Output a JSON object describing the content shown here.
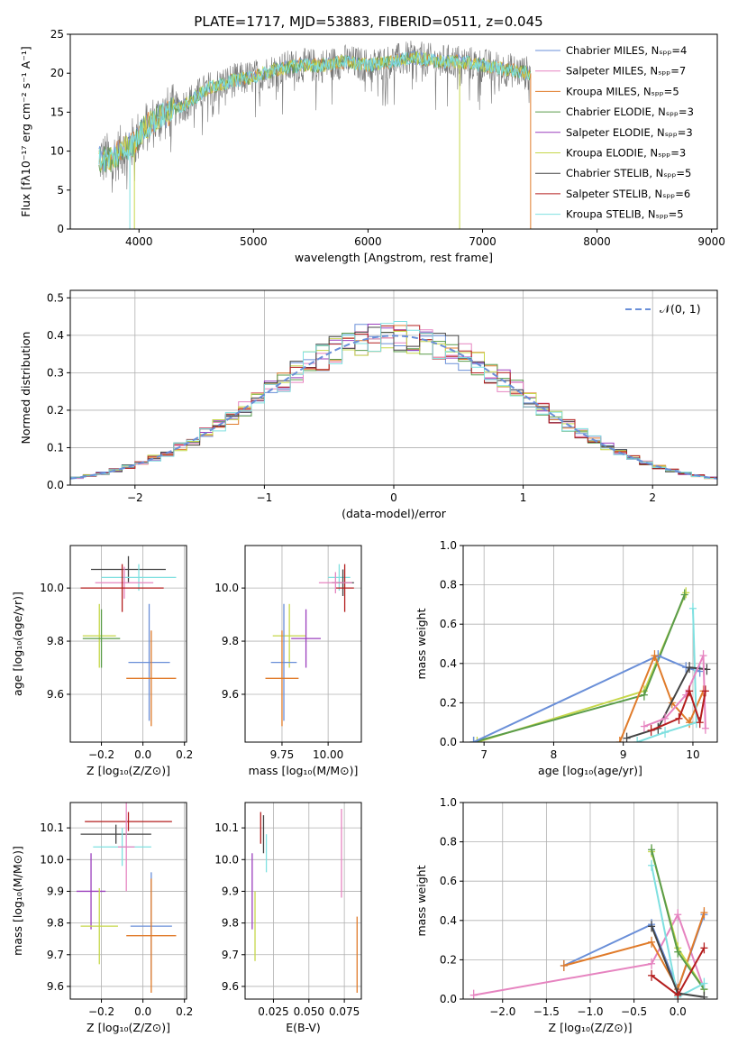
{
  "colors": [
    "#6a8fd8",
    "#e07b2a",
    "#5a9c4a",
    "#9b3fbd",
    "#7a7a7a",
    "#e684c0",
    "#b0b0b0",
    "#c6d74a",
    "#7fe0e0",
    "#444444",
    "#b41e1e"
  ],
  "chart_data": [
    {
      "id": "spectrum",
      "type": "line",
      "title": "PLATE=1717, MJD=53883, FIBERID=0511, z=0.045",
      "xlabel": "wavelength [Angstrom, rest frame]",
      "ylabel": "Flux [fλ10⁻¹⁷ erg cm⁻² s⁻¹ A⁻¹]",
      "xlim": [
        3400,
        9050
      ],
      "ylim": [
        0,
        25
      ],
      "xticks": [
        4000,
        5000,
        6000,
        7000,
        8000,
        9000
      ],
      "yticks": [
        0,
        5,
        10,
        15,
        20,
        25
      ],
      "legend_position": "upper-right",
      "legend": [
        {
          "label": "Chabrier MILES, Nₛₚₚ=4",
          "color": "#6a8fd8"
        },
        {
          "label": "Salpeter MILES, Nₛₚₚ=7",
          "color": "#e684c0"
        },
        {
          "label": "Kroupa MILES, Nₛₚₚ=5",
          "color": "#e07b2a"
        },
        {
          "label": "Chabrier ELODIE, Nₛₚₚ=3",
          "color": "#5a9c4a"
        },
        {
          "label": "Salpeter ELODIE, Nₛₚₚ=3",
          "color": "#9b3fbd"
        },
        {
          "label": "Kroupa ELODIE, Nₛₚₚ=3",
          "color": "#c6d74a"
        },
        {
          "label": "Chabrier STELIB, Nₛₚₚ=5",
          "color": "#444444"
        },
        {
          "label": "Salpeter STELIB, Nₛₚₚ=6",
          "color": "#b41e1e"
        },
        {
          "label": "Kroupa STELIB, Nₛₚₚ=5",
          "color": "#7fe0e0"
        }
      ],
      "continuum": {
        "x": [
          3650,
          3750,
          3850,
          3950,
          4050,
          4200,
          4400,
          4600,
          4800,
          5000,
          5200,
          5400,
          5600,
          5800,
          6000,
          6200,
          6400,
          6600,
          6800,
          7000,
          7200,
          7400
        ],
        "y": [
          9,
          9,
          10,
          11,
          13,
          14.5,
          16,
          18,
          19,
          19.5,
          20.5,
          21,
          21,
          21.5,
          21,
          21.5,
          22,
          21.5,
          21.5,
          21,
          20.5,
          20
        ]
      },
      "drops": [
        {
          "x": 3920,
          "color": "#7fe0e0"
        },
        {
          "x": 3960,
          "color": "#c6d74a"
        },
        {
          "x": 6800,
          "color": "#c6d74a"
        },
        {
          "x": 7420,
          "color": "#e07b2a"
        }
      ]
    },
    {
      "id": "residuals",
      "type": "step",
      "xlabel": "(data-model)/error",
      "ylabel": "Normed distribution",
      "xlim": [
        -2.5,
        2.5
      ],
      "ylim": [
        0,
        0.52
      ],
      "xticks": [
        -2,
        -1,
        0,
        1,
        2
      ],
      "yticks": [
        0.0,
        0.1,
        0.2,
        0.3,
        0.4,
        0.5
      ],
      "legend": "𝒩(0, 1)",
      "legend_position": "upper-right",
      "bin_width": 0.2,
      "grid": true
    },
    {
      "id": "age_vs_z",
      "type": "errorbar",
      "xlabel": "Z [log₁₀(Z/Z⊙)]",
      "ylabel": "age  [log₁₀(age/yr)]",
      "xlim": [
        -0.35,
        0.21
      ],
      "ylim": [
        9.42,
        10.16
      ],
      "xticks": [
        -0.2,
        0.0,
        0.2
      ],
      "yticks": [
        9.6,
        9.8,
        10.0
      ],
      "points": [
        {
          "x": -0.07,
          "y": 10.07,
          "xe": 0.18,
          "ye": 0.05,
          "color": "#444444"
        },
        {
          "x": -0.02,
          "y": 10.04,
          "xe": 0.18,
          "ye": 0.05,
          "color": "#7fe0e0"
        },
        {
          "x": -0.09,
          "y": 10.02,
          "xe": 0.14,
          "ye": 0.06,
          "color": "#e684c0"
        },
        {
          "x": -0.1,
          "y": 10.0,
          "xe": 0.2,
          "ye": 0.09,
          "color": "#b41e1e"
        },
        {
          "x": -0.21,
          "y": 9.82,
          "xe": 0.08,
          "ye": 0.12,
          "color": "#c6d74a"
        },
        {
          "x": -0.2,
          "y": 9.81,
          "xe": 0.09,
          "ye": 0.11,
          "color": "#5a9c4a"
        },
        {
          "x": 0.03,
          "y": 9.72,
          "xe": 0.1,
          "ye": 0.22,
          "color": "#6a8fd8"
        },
        {
          "x": 0.04,
          "y": 9.66,
          "xe": 0.12,
          "ye": 0.18,
          "color": "#e07b2a"
        }
      ]
    },
    {
      "id": "age_vs_mass",
      "type": "errorbar",
      "xlabel": "mass [log₁₀(M/M⊙)]",
      "ylabel": "",
      "xlim": [
        9.55,
        10.18
      ],
      "ylim": [
        9.42,
        10.16
      ],
      "xticks": [
        9.75,
        10.0
      ],
      "yticks": [
        9.6,
        9.8,
        10.0
      ],
      "points": [
        {
          "x": 10.06,
          "y": 10.04,
          "xe": 0.06,
          "ye": 0.05,
          "color": "#7fe0e0"
        },
        {
          "x": 10.08,
          "y": 10.02,
          "xe": 0.06,
          "ye": 0.05,
          "color": "#444444"
        },
        {
          "x": 10.09,
          "y": 10.0,
          "xe": 0.05,
          "ye": 0.09,
          "color": "#b41e1e"
        },
        {
          "x": 10.04,
          "y": 10.02,
          "xe": 0.09,
          "ye": 0.04,
          "color": "#e684c0"
        },
        {
          "x": 9.79,
          "y": 9.82,
          "xe": 0.09,
          "ye": 0.12,
          "color": "#c6d74a"
        },
        {
          "x": 9.88,
          "y": 9.81,
          "xe": 0.08,
          "ye": 0.11,
          "color": "#9b3fbd"
        },
        {
          "x": 9.76,
          "y": 9.72,
          "xe": 0.07,
          "ye": 0.22,
          "color": "#6a8fd8"
        },
        {
          "x": 9.75,
          "y": 9.66,
          "xe": 0.09,
          "ye": 0.18,
          "color": "#e07b2a"
        }
      ]
    },
    {
      "id": "weight_vs_age",
      "type": "line",
      "xlabel": "age  [log₁₀(age/yr)]",
      "ylabel": "mass weight",
      "xlim": [
        6.7,
        10.35
      ],
      "ylim": [
        0.0,
        1.0
      ],
      "xticks": [
        7,
        8,
        9,
        10
      ],
      "yticks": [
        0.0,
        0.2,
        0.4,
        0.6,
        0.8,
        1.0
      ],
      "series": [
        {
          "color": "#c6d74a",
          "x": [
            6.9,
            9.3,
            9.9
          ],
          "y": [
            0.0,
            0.26,
            0.76
          ]
        },
        {
          "color": "#5a9c4a",
          "x": [
            6.85,
            9.3,
            9.88
          ],
          "y": [
            0.0,
            0.24,
            0.75
          ]
        },
        {
          "color": "#6a8fd8",
          "x": [
            6.85,
            9.5,
            9.9,
            10.1
          ],
          "y": [
            0.0,
            0.44,
            0.38,
            0.36
          ]
        },
        {
          "color": "#e07b2a",
          "x": [
            8.95,
            9.45,
            9.7,
            9.95,
            10.15
          ],
          "y": [
            0.0,
            0.44,
            0.2,
            0.1,
            0.26
          ]
        },
        {
          "color": "#7fe0e0",
          "x": [
            9.2,
            9.6,
            10.05,
            10.0
          ],
          "y": [
            0.0,
            0.05,
            0.1,
            0.68
          ]
        },
        {
          "color": "#444444",
          "x": [
            9.05,
            9.5,
            9.95,
            10.2
          ],
          "y": [
            0.02,
            0.07,
            0.38,
            0.37
          ]
        },
        {
          "color": "#e684c0",
          "x": [
            9.3,
            9.6,
            9.9,
            10.15,
            10.18
          ],
          "y": [
            0.08,
            0.12,
            0.24,
            0.44,
            0.07
          ]
        },
        {
          "color": "#b41e1e",
          "x": [
            9.4,
            9.8,
            9.95,
            10.1,
            10.18
          ],
          "y": [
            0.06,
            0.12,
            0.26,
            0.1,
            0.26
          ]
        }
      ]
    },
    {
      "id": "mass_vs_z",
      "type": "errorbar",
      "xlabel": "Z [log₁₀(Z/Z⊙)]",
      "ylabel": "mass [log₁₀(M/M⊙)]",
      "xlim": [
        -0.35,
        0.21
      ],
      "ylim": [
        9.56,
        10.18
      ],
      "xticks": [
        -0.2,
        0.0,
        0.2
      ],
      "yticks": [
        9.6,
        9.7,
        9.8,
        9.9,
        10.0,
        10.1
      ],
      "points": [
        {
          "x": -0.07,
          "y": 10.12,
          "xe": 0.21,
          "ye": 0.03,
          "color": "#b41e1e"
        },
        {
          "x": -0.13,
          "y": 10.08,
          "xe": 0.17,
          "ye": 0.03,
          "color": "#444444"
        },
        {
          "x": -0.1,
          "y": 10.04,
          "xe": 0.14,
          "ye": 0.06,
          "color": "#7fe0e0"
        },
        {
          "x": -0.08,
          "y": 10.04,
          "xe": 0.04,
          "ye": 0.14,
          "color": "#e684c0"
        },
        {
          "x": -0.25,
          "y": 9.9,
          "xe": 0.07,
          "ye": 0.12,
          "color": "#9b3fbd"
        },
        {
          "x": -0.21,
          "y": 9.79,
          "xe": 0.09,
          "ye": 0.12,
          "color": "#c6d74a"
        },
        {
          "x": 0.04,
          "y": 9.79,
          "xe": 0.1,
          "ye": 0.17,
          "color": "#6a8fd8"
        },
        {
          "x": 0.04,
          "y": 9.76,
          "xe": 0.12,
          "ye": 0.18,
          "color": "#e07b2a"
        }
      ]
    },
    {
      "id": "mass_vs_ebv",
      "type": "errorbar",
      "xlabel": "E(B-V)",
      "ylabel": "",
      "xlim": [
        0.005,
        0.087
      ],
      "ylim": [
        9.56,
        10.18
      ],
      "xticks": [
        0.025,
        0.05,
        0.075
      ],
      "xticklabels": [
        "0.025",
        "0.050",
        "0.075"
      ],
      "yticks": [
        9.6,
        9.7,
        9.8,
        9.9,
        10.0,
        10.1
      ],
      "points": [
        {
          "x": 0.016,
          "y": 10.1,
          "xe": 0.0,
          "ye": 0.05,
          "color": "#b41e1e"
        },
        {
          "x": 0.018,
          "y": 10.08,
          "xe": 0.0,
          "ye": 0.06,
          "color": "#444444"
        },
        {
          "x": 0.02,
          "y": 10.02,
          "xe": 0.0,
          "ye": 0.06,
          "color": "#7fe0e0"
        },
        {
          "x": 0.01,
          "y": 9.9,
          "xe": 0.0,
          "ye": 0.12,
          "color": "#9b3fbd"
        },
        {
          "x": 0.012,
          "y": 9.79,
          "xe": 0.0,
          "ye": 0.11,
          "color": "#c6d74a"
        },
        {
          "x": 0.073,
          "y": 10.02,
          "xe": 0.0,
          "ye": 0.14,
          "color": "#e684c0"
        },
        {
          "x": 0.084,
          "y": 9.7,
          "xe": 0.0,
          "ye": 0.12,
          "color": "#e07b2a"
        }
      ]
    },
    {
      "id": "weight_vs_z",
      "type": "line",
      "xlabel": "Z [log₁₀(Z/Z⊙)]",
      "ylabel": "mass weight",
      "xlim": [
        -2.45,
        0.45
      ],
      "ylim": [
        0.0,
        1.0
      ],
      "xticks": [
        -2.0,
        -1.5,
        -1.0,
        -0.5,
        0.0
      ],
      "yticks": [
        0.0,
        0.2,
        0.4,
        0.6,
        0.8,
        1.0
      ],
      "series": [
        {
          "color": "#e684c0",
          "x": [
            -2.33,
            -0.3,
            0.0,
            0.3
          ],
          "y": [
            0.02,
            0.18,
            0.43,
            0.05
          ]
        },
        {
          "color": "#6a8fd8",
          "x": [
            -1.3,
            -0.3,
            0.0,
            0.3
          ],
          "y": [
            0.17,
            0.38,
            0.05,
            0.43
          ]
        },
        {
          "color": "#e07b2a",
          "x": [
            -1.3,
            -0.3,
            0.0,
            0.3
          ],
          "y": [
            0.17,
            0.29,
            0.05,
            0.44
          ]
        },
        {
          "color": "#c6d74a",
          "x": [
            -0.3,
            0.0,
            0.3
          ],
          "y": [
            0.75,
            0.26,
            0.05
          ]
        },
        {
          "color": "#5a9c4a",
          "x": [
            -0.3,
            0.0,
            0.3
          ],
          "y": [
            0.76,
            0.24,
            0.05
          ]
        },
        {
          "color": "#7fe0e0",
          "x": [
            -0.3,
            0.0,
            0.3
          ],
          "y": [
            0.68,
            0.01,
            0.08
          ]
        },
        {
          "color": "#444444",
          "x": [
            -0.3,
            0.0,
            0.3
          ],
          "y": [
            0.37,
            0.03,
            0.01
          ]
        },
        {
          "color": "#b41e1e",
          "x": [
            -0.3,
            0.0,
            0.3
          ],
          "y": [
            0.12,
            0.02,
            0.26
          ]
        }
      ]
    }
  ]
}
